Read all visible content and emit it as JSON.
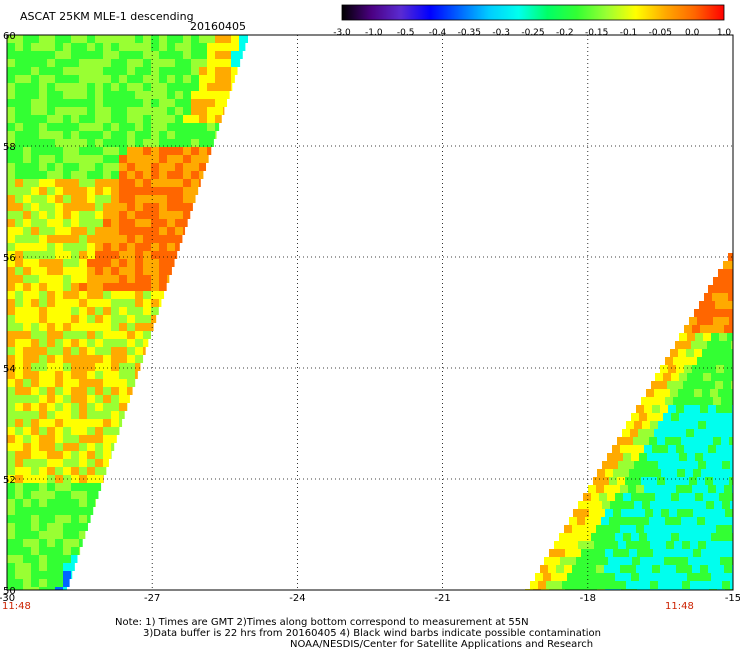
{
  "header": {
    "title": "ASCAT 25KM MLE-1 descending",
    "date": "20160405"
  },
  "colorbar": {
    "labels": [
      "-3.0",
      "-1.0",
      "-0.5",
      "-0.4",
      "-0.35",
      "-0.3",
      "-0.25",
      "-0.2",
      "-0.15",
      "-0.1",
      "-0.05",
      "0.0",
      "1.0"
    ],
    "colors": [
      "#000000",
      "#4b0082",
      "#5a2bd2",
      "#0000ff",
      "#0066ff",
      "#00ccff",
      "#00ffee",
      "#00ff66",
      "#33ff33",
      "#99ff33",
      "#ffff00",
      "#ffaa00",
      "#ff6600",
      "#ff0000"
    ]
  },
  "axes": {
    "y_labels": [
      "50",
      "52",
      "54",
      "56",
      "58",
      "60"
    ],
    "x_labels": [
      "-30",
      "-27",
      "-24",
      "-21",
      "-18",
      "-15"
    ]
  },
  "pass_times": {
    "left": "11:48",
    "right": "11:48"
  },
  "notes": {
    "line1": "Note: 1) Times are GMT 2)Times along bottom correspond to measurement at 55N",
    "line2": "3)Data buffer is 22 hrs from 20160405 4) Black wind barbs indicate possible contamination",
    "line3": "NOAA/NESDIS/Center for Satellite Applications and Research"
  },
  "map_colors": {
    "cyan": "#00ffee",
    "green": "#33ff33",
    "lime": "#99ff33",
    "yellow": "#ffff00",
    "orange": "#ffaa00",
    "dark_orange": "#ff6600",
    "blue": "#0066ff"
  }
}
